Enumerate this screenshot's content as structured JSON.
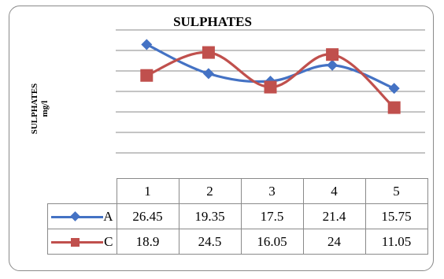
{
  "chart_data": {
    "type": "line",
    "title": "SULPHATES",
    "ylabel": [
      "SULPHATES",
      "mg/l"
    ],
    "xlabel": "",
    "categories": [
      "1",
      "2",
      "3",
      "4",
      "5"
    ],
    "ylim": [
      0,
      30
    ],
    "y_gridlines": [
      0,
      5,
      10,
      15,
      20,
      25,
      30
    ],
    "smooth": true,
    "series": [
      {
        "name": "A",
        "values": [
          26.45,
          19.35,
          17.5,
          21.4,
          15.75
        ],
        "color": "#4472C4",
        "marker": "diamond"
      },
      {
        "name": "C",
        "values": [
          18.9,
          24.5,
          16.05,
          24,
          11.05
        ],
        "color": "#C0504D",
        "marker": "square"
      }
    ],
    "data_table": true
  }
}
